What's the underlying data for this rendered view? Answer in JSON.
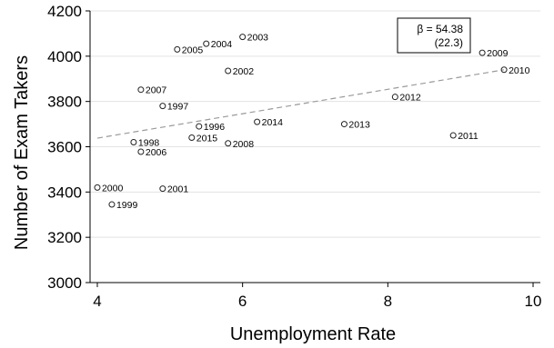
{
  "chart_data": {
    "type": "scatter",
    "xlabel": "Unemployment Rate",
    "ylabel": "Number of Exam Takers",
    "xlim": [
      3.9,
      10.1
    ],
    "ylim": [
      3000,
      4200
    ],
    "x_ticks": [
      4,
      6,
      8,
      10
    ],
    "y_ticks": [
      3000,
      3200,
      3400,
      3600,
      3800,
      4000,
      4200
    ],
    "grid": "horizontal",
    "points": [
      {
        "label": "1996",
        "x": 5.4,
        "y": 3690
      },
      {
        "label": "1997",
        "x": 4.9,
        "y": 3780
      },
      {
        "label": "1998",
        "x": 4.5,
        "y": 3620
      },
      {
        "label": "1999",
        "x": 4.2,
        "y": 3345
      },
      {
        "label": "2000",
        "x": 4.0,
        "y": 3420
      },
      {
        "label": "2001",
        "x": 4.9,
        "y": 3415
      },
      {
        "label": "2002",
        "x": 5.8,
        "y": 3935
      },
      {
        "label": "2003",
        "x": 6.0,
        "y": 4085
      },
      {
        "label": "2004",
        "x": 5.5,
        "y": 4055
      },
      {
        "label": "2005",
        "x": 5.1,
        "y": 4030
      },
      {
        "label": "2006",
        "x": 4.6,
        "y": 3578
      },
      {
        "label": "2007",
        "x": 4.6,
        "y": 3852
      },
      {
        "label": "2008",
        "x": 5.8,
        "y": 3615
      },
      {
        "label": "2009",
        "x": 9.3,
        "y": 4015
      },
      {
        "label": "2010",
        "x": 9.6,
        "y": 3940
      },
      {
        "label": "2011",
        "x": 8.9,
        "y": 3650
      },
      {
        "label": "2012",
        "x": 8.1,
        "y": 3820
      },
      {
        "label": "2013",
        "x": 7.4,
        "y": 3700
      },
      {
        "label": "2014",
        "x": 6.2,
        "y": 3710
      },
      {
        "label": "2015",
        "x": 5.3,
        "y": 3640
      }
    ],
    "fit_line": {
      "x": [
        4.0,
        9.6
      ],
      "y": [
        3638,
        3940
      ]
    },
    "annotation": {
      "beta": "β = 54.38",
      "se": "(22.3)"
    }
  }
}
